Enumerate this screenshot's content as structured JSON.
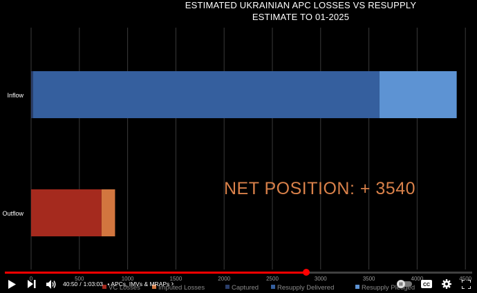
{
  "chart_data": {
    "type": "bar",
    "orientation": "horizontal",
    "stacked": true,
    "title_line1": "ESTIMATED UKRAINIAN APC LOSSES VS RESUPPLY",
    "title_line2": "ESTIMATE TO 01-2025",
    "categories": [
      "Inflow",
      "Outflow"
    ],
    "xlim": [
      0,
      4500
    ],
    "xticks": [
      0,
      500,
      1000,
      1500,
      2000,
      2500,
      3000,
      3500,
      4000,
      4500
    ],
    "grid": true,
    "legend_position": "bottom",
    "series": [
      {
        "name": "VC Losses",
        "color": "#a52a1e",
        "values": [
          0,
          730
        ]
      },
      {
        "name": "Imputed Losses",
        "color": "#d2763f",
        "values": [
          0,
          140
        ]
      },
      {
        "name": "Captured",
        "color": "#2a3e6b",
        "values": [
          20,
          0
        ]
      },
      {
        "name": "Resupply Delivered",
        "color": "#355f9e",
        "values": [
          3590,
          0
        ]
      },
      {
        "name": "Resupply Pledged",
        "color": "#5d93d3",
        "values": [
          800,
          0
        ]
      }
    ],
    "annotation": "NET POSITION: + 3540"
  },
  "player": {
    "progress": 0.6455,
    "current_time": "40:50",
    "separator": "/",
    "duration": "1:03:03",
    "chapter": "• APCs, IMVs & MRAPs",
    "chapter_arrow": "›",
    "cc_label": "CC",
    "icons": {
      "play": "play-icon",
      "next": "next-icon",
      "volume": "volume-icon",
      "autoplay": "autoplay-toggle-icon",
      "captions": "captions-icon",
      "settings": "settings-icon",
      "fullscreen": "fullscreen-icon"
    },
    "accent_color": "#ff0000"
  }
}
